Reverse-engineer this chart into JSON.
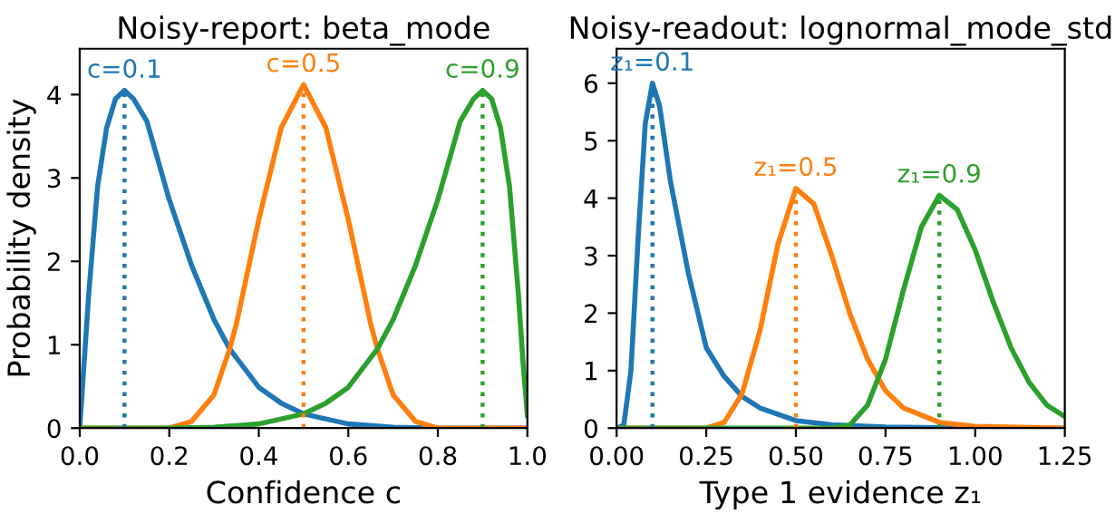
{
  "chart_data": [
    {
      "type": "line",
      "title": "Noisy-report: beta_mode",
      "xlabel": "Confidence c",
      "ylabel": "Probability density",
      "xlim": [
        0,
        1
      ],
      "ylim": [
        0,
        4.55
      ],
      "xticks": [
        {
          "value": 0,
          "label": "0.0"
        },
        0.2,
        0.4,
        0.6,
        0.8,
        {
          "value": 1,
          "label": "1.0"
        }
      ],
      "yticks": [
        0,
        1,
        2,
        3,
        4
      ],
      "grid": false,
      "legend": false,
      "series": [
        {
          "color": "#1f77b4",
          "x": [
            0,
            0.01,
            0.02,
            0.04,
            0.06,
            0.08,
            0.1,
            0.12,
            0.15,
            0.2,
            0.25,
            0.3,
            0.335,
            0.4,
            0.45,
            0.5,
            0.6,
            0.7,
            0.8,
            1.0
          ],
          "values": [
            0,
            0.8,
            1.6,
            2.9,
            3.6,
            3.95,
            4.05,
            3.95,
            3.68,
            2.74,
            1.95,
            1.3,
            0.95,
            0.49,
            0.3,
            0.17,
            0.05,
            0.01,
            0,
            0
          ]
        },
        {
          "color": "#ff7f0e",
          "x": [
            0,
            0.2,
            0.25,
            0.3,
            0.335,
            0.35,
            0.4,
            0.45,
            0.5,
            0.55,
            0.6,
            0.65,
            0.665,
            0.7,
            0.75,
            0.8,
            1.0
          ],
          "values": [
            0,
            0,
            0.08,
            0.4,
            0.95,
            1.25,
            2.5,
            3.6,
            4.12,
            3.6,
            2.5,
            1.25,
            0.95,
            0.4,
            0.08,
            0,
            0
          ]
        },
        {
          "color": "#2ca02c",
          "x": [
            0,
            0.2,
            0.3,
            0.4,
            0.5,
            0.55,
            0.6,
            0.665,
            0.7,
            0.75,
            0.8,
            0.85,
            0.88,
            0.9,
            0.92,
            0.94,
            0.96,
            0.98,
            0.99,
            1.0
          ],
          "values": [
            0,
            0,
            0.01,
            0.05,
            0.17,
            0.3,
            0.49,
            0.95,
            1.3,
            1.95,
            2.74,
            3.68,
            3.95,
            4.05,
            3.95,
            3.6,
            2.9,
            1.6,
            0.8,
            0.15
          ]
        },
        {
          "color": "#1f77b4",
          "line_style": "dotted",
          "x": [
            0.1,
            0.1
          ],
          "values": [
            0,
            4.05
          ]
        },
        {
          "color": "#ff7f0e",
          "line_style": "dotted",
          "x": [
            0.5,
            0.5
          ],
          "values": [
            0,
            4.12
          ]
        },
        {
          "color": "#2ca02c",
          "line_style": "dotted",
          "x": [
            0.9,
            0.9
          ],
          "values": [
            0,
            4.05
          ]
        }
      ],
      "annotations": [
        {
          "text": "c=0.1",
          "x": 0.1,
          "y": 4.05
        },
        {
          "text": "c=0.5",
          "x": 0.5,
          "y": 4.12
        },
        {
          "text": "c=0.9",
          "x": 0.9,
          "y": 4.05
        }
      ]
    },
    {
      "type": "line",
      "title": "Noisy-readout: lognormal_mode_std",
      "xlabel": "Type 1 evidence z₁",
      "xlim": [
        0,
        1.25
      ],
      "ylim": [
        0,
        6.6
      ],
      "xticks": [
        {
          "value": 0,
          "label": "0.00"
        },
        0.25,
        {
          "value": 0.5,
          "label": "0.50"
        },
        0.75,
        {
          "value": 1,
          "label": "1.00"
        },
        1.25
      ],
      "yticks": [
        0,
        1,
        2,
        3,
        4,
        5,
        6
      ],
      "grid": false,
      "legend": false,
      "series": [
        {
          "color": "#1f77b4",
          "x": [
            0,
            0.02,
            0.04,
            0.06,
            0.08,
            0.1,
            0.12,
            0.15,
            0.2,
            0.25,
            0.3,
            0.35,
            0.4,
            0.5,
            0.6,
            0.75,
            1.0,
            1.25
          ],
          "values": [
            0,
            0.05,
            1.0,
            3.3,
            5.3,
            6.0,
            5.6,
            4.3,
            2.7,
            1.4,
            0.9,
            0.55,
            0.35,
            0.13,
            0.06,
            0.02,
            0,
            0
          ]
        },
        {
          "color": "#ff7f0e",
          "x": [
            0,
            0.25,
            0.3,
            0.35,
            0.4,
            0.45,
            0.5,
            0.55,
            0.6,
            0.65,
            0.7,
            0.75,
            0.8,
            0.9,
            1.0,
            1.25
          ],
          "values": [
            0,
            0,
            0.1,
            0.6,
            1.7,
            3.2,
            4.17,
            3.9,
            3.0,
            2.0,
            1.2,
            0.65,
            0.35,
            0.1,
            0.03,
            0
          ]
        },
        {
          "color": "#2ca02c",
          "x": [
            0,
            0.6,
            0.65,
            0.7,
            0.75,
            0.8,
            0.85,
            0.9,
            0.95,
            1.0,
            1.05,
            1.1,
            1.15,
            1.2,
            1.25
          ],
          "values": [
            0,
            0,
            0.05,
            0.4,
            1.2,
            2.4,
            3.5,
            4.05,
            3.8,
            3.1,
            2.2,
            1.4,
            0.8,
            0.4,
            0.2
          ]
        },
        {
          "color": "#1f77b4",
          "line_style": "dotted",
          "x": [
            0.1,
            0.1
          ],
          "values": [
            0,
            6.0
          ]
        },
        {
          "color": "#ff7f0e",
          "line_style": "dotted",
          "x": [
            0.5,
            0.5
          ],
          "values": [
            0,
            4.17
          ]
        },
        {
          "color": "#2ca02c",
          "line_style": "dotted",
          "x": [
            0.9,
            0.9
          ],
          "values": [
            0,
            4.05
          ]
        }
      ],
      "annotations": [
        {
          "text": "z₁=0.1",
          "x": 0.1,
          "y": 6.0
        },
        {
          "text": "z₁=0.5",
          "x": 0.5,
          "y": 4.17
        },
        {
          "text": "z₁=0.9",
          "x": 0.9,
          "y": 4.05
        }
      ]
    }
  ]
}
